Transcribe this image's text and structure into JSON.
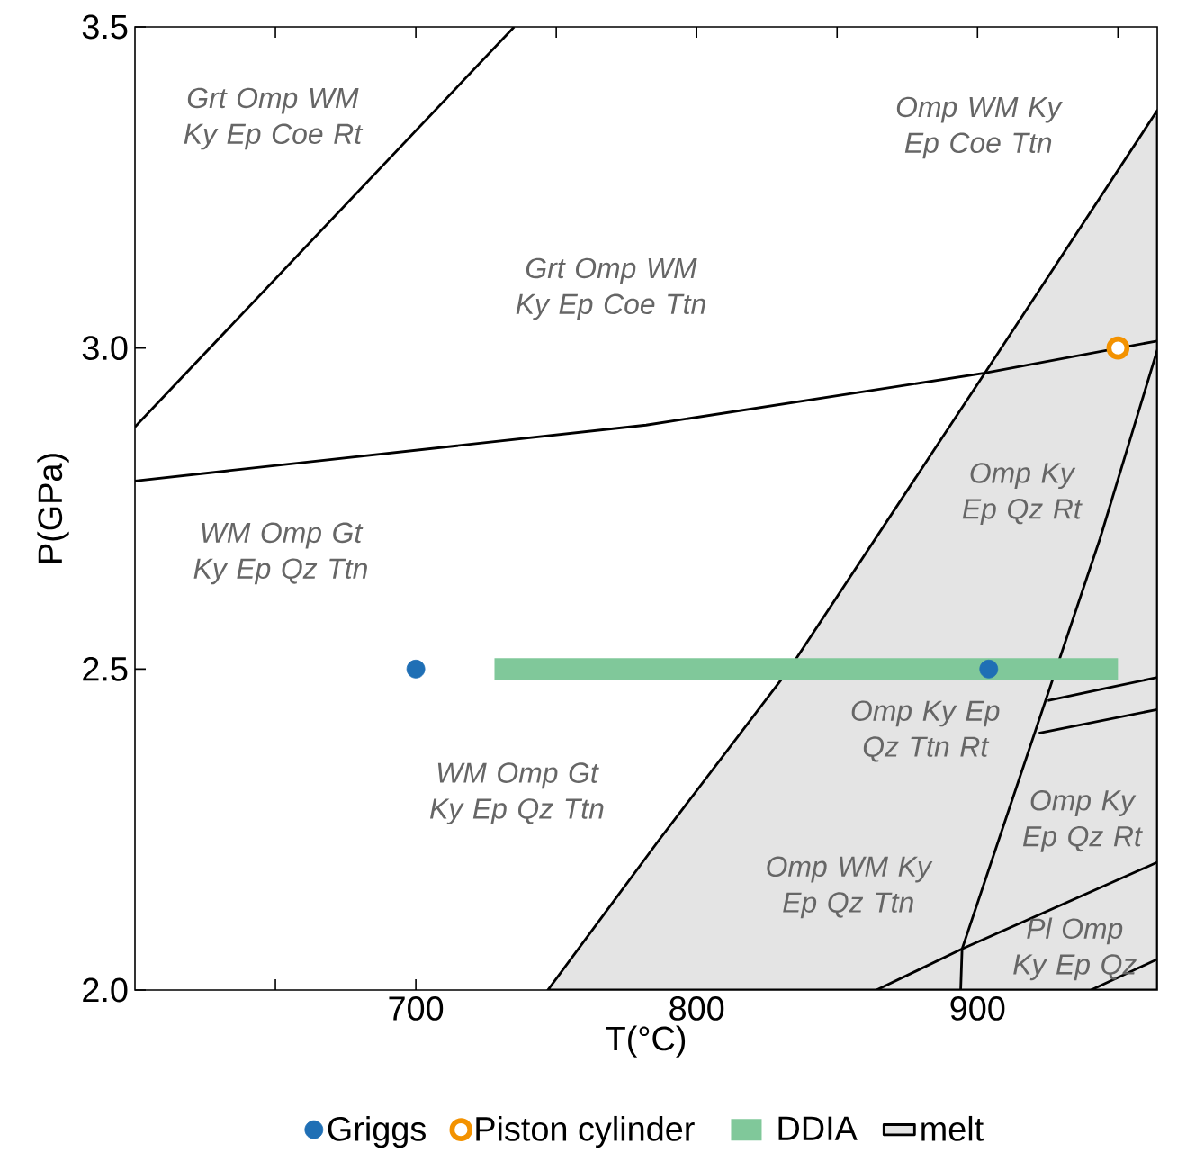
{
  "chart_data": {
    "type": "line",
    "xlabel": "T(°C)",
    "ylabel": "P(GPa)",
    "xlim": [
      600,
      964
    ],
    "ylim": [
      2.0,
      3.5
    ],
    "xticks": [
      {
        "value": 650,
        "label": null
      },
      700,
      {
        "value": 750,
        "label": null
      },
      800,
      {
        "value": 850,
        "label": null
      },
      900,
      {
        "value": 950,
        "label": null
      }
    ],
    "yticks": [
      {
        "value": 2,
        "label": "2.0"
      },
      2.5,
      {
        "value": 3,
        "label": "3.0"
      },
      3.5
    ],
    "legend": "bottom",
    "series": [
      {
        "name": "melt",
        "type": "area",
        "color": "#e4e4e4",
        "x": [
          747,
          786.5,
          833,
          902.6,
          964,
          964
        ],
        "values": [
          2.0,
          2.233,
          2.5,
          2.961,
          3.37,
          2.0
        ]
      },
      {
        "color": "#000000",
        "line_style": "solid",
        "x": [
          600,
          735
        ],
        "values": [
          2.877,
          3.5
        ]
      },
      {
        "color": "#000000",
        "line_style": "solid",
        "x": [
          600,
          782,
          902.6,
          964
        ],
        "values": [
          2.793,
          2.88,
          2.961,
          3.011
        ]
      },
      {
        "color": "#000000",
        "line_style": "solid",
        "x": [
          894,
          894.5,
          943.6,
          964
        ],
        "values": [
          2.0,
          2.064,
          2.703,
          2.997
        ]
      },
      {
        "color": "#000000",
        "line_style": "solid",
        "x": [
          864,
          894.5,
          964
        ],
        "values": [
          2.0,
          2.064,
          2.199
        ]
      },
      {
        "color": "#000000",
        "line_style": "solid",
        "x": [
          940.4,
          964
        ],
        "values": [
          2.0,
          2.048
        ]
      },
      {
        "color": "#000000",
        "line_style": "solid",
        "x": [
          925,
          964
        ],
        "values": [
          2.451,
          2.487
        ]
      },
      {
        "color": "#000000",
        "line_style": "solid",
        "x": [
          921.8,
          964
        ],
        "values": [
          2.4,
          2.437
        ]
      },
      {
        "name": "DDIA",
        "color": "#80c89a",
        "x": [
          728,
          950
        ],
        "values": [
          2.5,
          2.5
        ]
      },
      {
        "name": "Piston cylinder",
        "type": "scatter",
        "color": "#f39200",
        "marker": "open circle",
        "x": [
          950
        ],
        "values": [
          3.0
        ]
      },
      {
        "name": "Griggs",
        "type": "scatter",
        "color": "#1f6fb5",
        "marker": "circle",
        "x": [
          700,
          904
        ],
        "values": [
          2.5,
          2.5
        ]
      }
    ],
    "annotations": [
      "Grt Omp WM Ky Ep Coe Rt",
      "Grt Omp WM Ky Ep Coe Ttn",
      "Omp WM Ky Ep Coe Ttn",
      "WM Omp Gt Ky Ep Qz Ttn",
      "Omp Ky Ep Qz Rt",
      "WM Omp Gt Ky Ep Qz Ttn",
      "Omp Ky Ep Qz Ttn Rt",
      "Omp Ky Ep Qz Rt",
      "Omp WM Ky Ep Qz Ttn",
      "Pl Omp Ky Ep Qz"
    ]
  }
}
